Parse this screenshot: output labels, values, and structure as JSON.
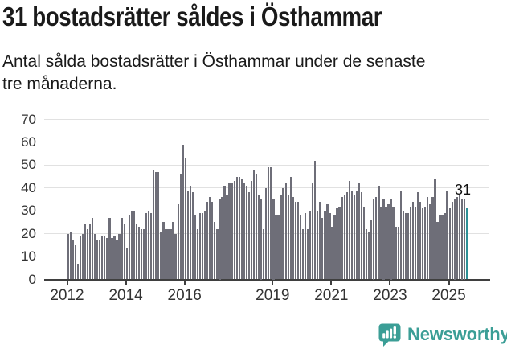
{
  "header": {
    "title": "31 bostadsrätter såldes i Östhammar",
    "subtitle_lines": [
      "Antal sålda bostadsrätter i Östhammar under de senaste",
      "tre månaderna."
    ]
  },
  "chart_data": {
    "type": "bar",
    "title": "31 bostadsrätter såldes i Östhammar",
    "xlabel": "",
    "ylabel": "",
    "x_start": "2012-01",
    "x_freq": "monthly",
    "x_end": "2025-08",
    "values": [
      20,
      21,
      17,
      15,
      7,
      19,
      20,
      24,
      22,
      24,
      27,
      20,
      17,
      17,
      19,
      19,
      18,
      27,
      18,
      19,
      17,
      20,
      27,
      24,
      14,
      28,
      30,
      30,
      24,
      23,
      22,
      22,
      29,
      30,
      29,
      48,
      47,
      47,
      21,
      25,
      22,
      22,
      22,
      25,
      20,
      33,
      46,
      59,
      53,
      39,
      41,
      38,
      28,
      22,
      29,
      29,
      30,
      34,
      36,
      34,
      25,
      22,
      35,
      36,
      41,
      37,
      42,
      42,
      43,
      45,
      45,
      44,
      42,
      41,
      38,
      43,
      48,
      46,
      37,
      35,
      22,
      40,
      49,
      49,
      35,
      28,
      28,
      37,
      40,
      42,
      37,
      45,
      36,
      34,
      34,
      28,
      22,
      29,
      22,
      30,
      42,
      52,
      30,
      34,
      27,
      30,
      33,
      29,
      23,
      28,
      31,
      32,
      36,
      37,
      38,
      43,
      39,
      37,
      39,
      42,
      38,
      32,
      22,
      21,
      26,
      35,
      36,
      41,
      32,
      35,
      32,
      33,
      35,
      32,
      23,
      23,
      39,
      30,
      29,
      29,
      32,
      34,
      32,
      38,
      34,
      31,
      32,
      36,
      33,
      36,
      44,
      25,
      28,
      28,
      29,
      39,
      31,
      34,
      35,
      36,
      37,
      35,
      35,
      31
    ],
    "last_value": 31,
    "annotation": "31",
    "ylim": [
      0,
      70
    ],
    "yticks": [
      0,
      10,
      20,
      30,
      40,
      50,
      60,
      70
    ],
    "xtick_labels": [
      "2012",
      "2014",
      "2016",
      "2019",
      "2021",
      "2023",
      "2025"
    ],
    "grid": "horizontal",
    "legend": "none",
    "bar_color": "#6e6e78",
    "highlight_color": "#2d9096"
  },
  "footer": {
    "brand": "Newsworthy",
    "logo_icon": "newsworthy-speech-bubble-barchart-icon",
    "brand_color": "#3b9e96"
  }
}
